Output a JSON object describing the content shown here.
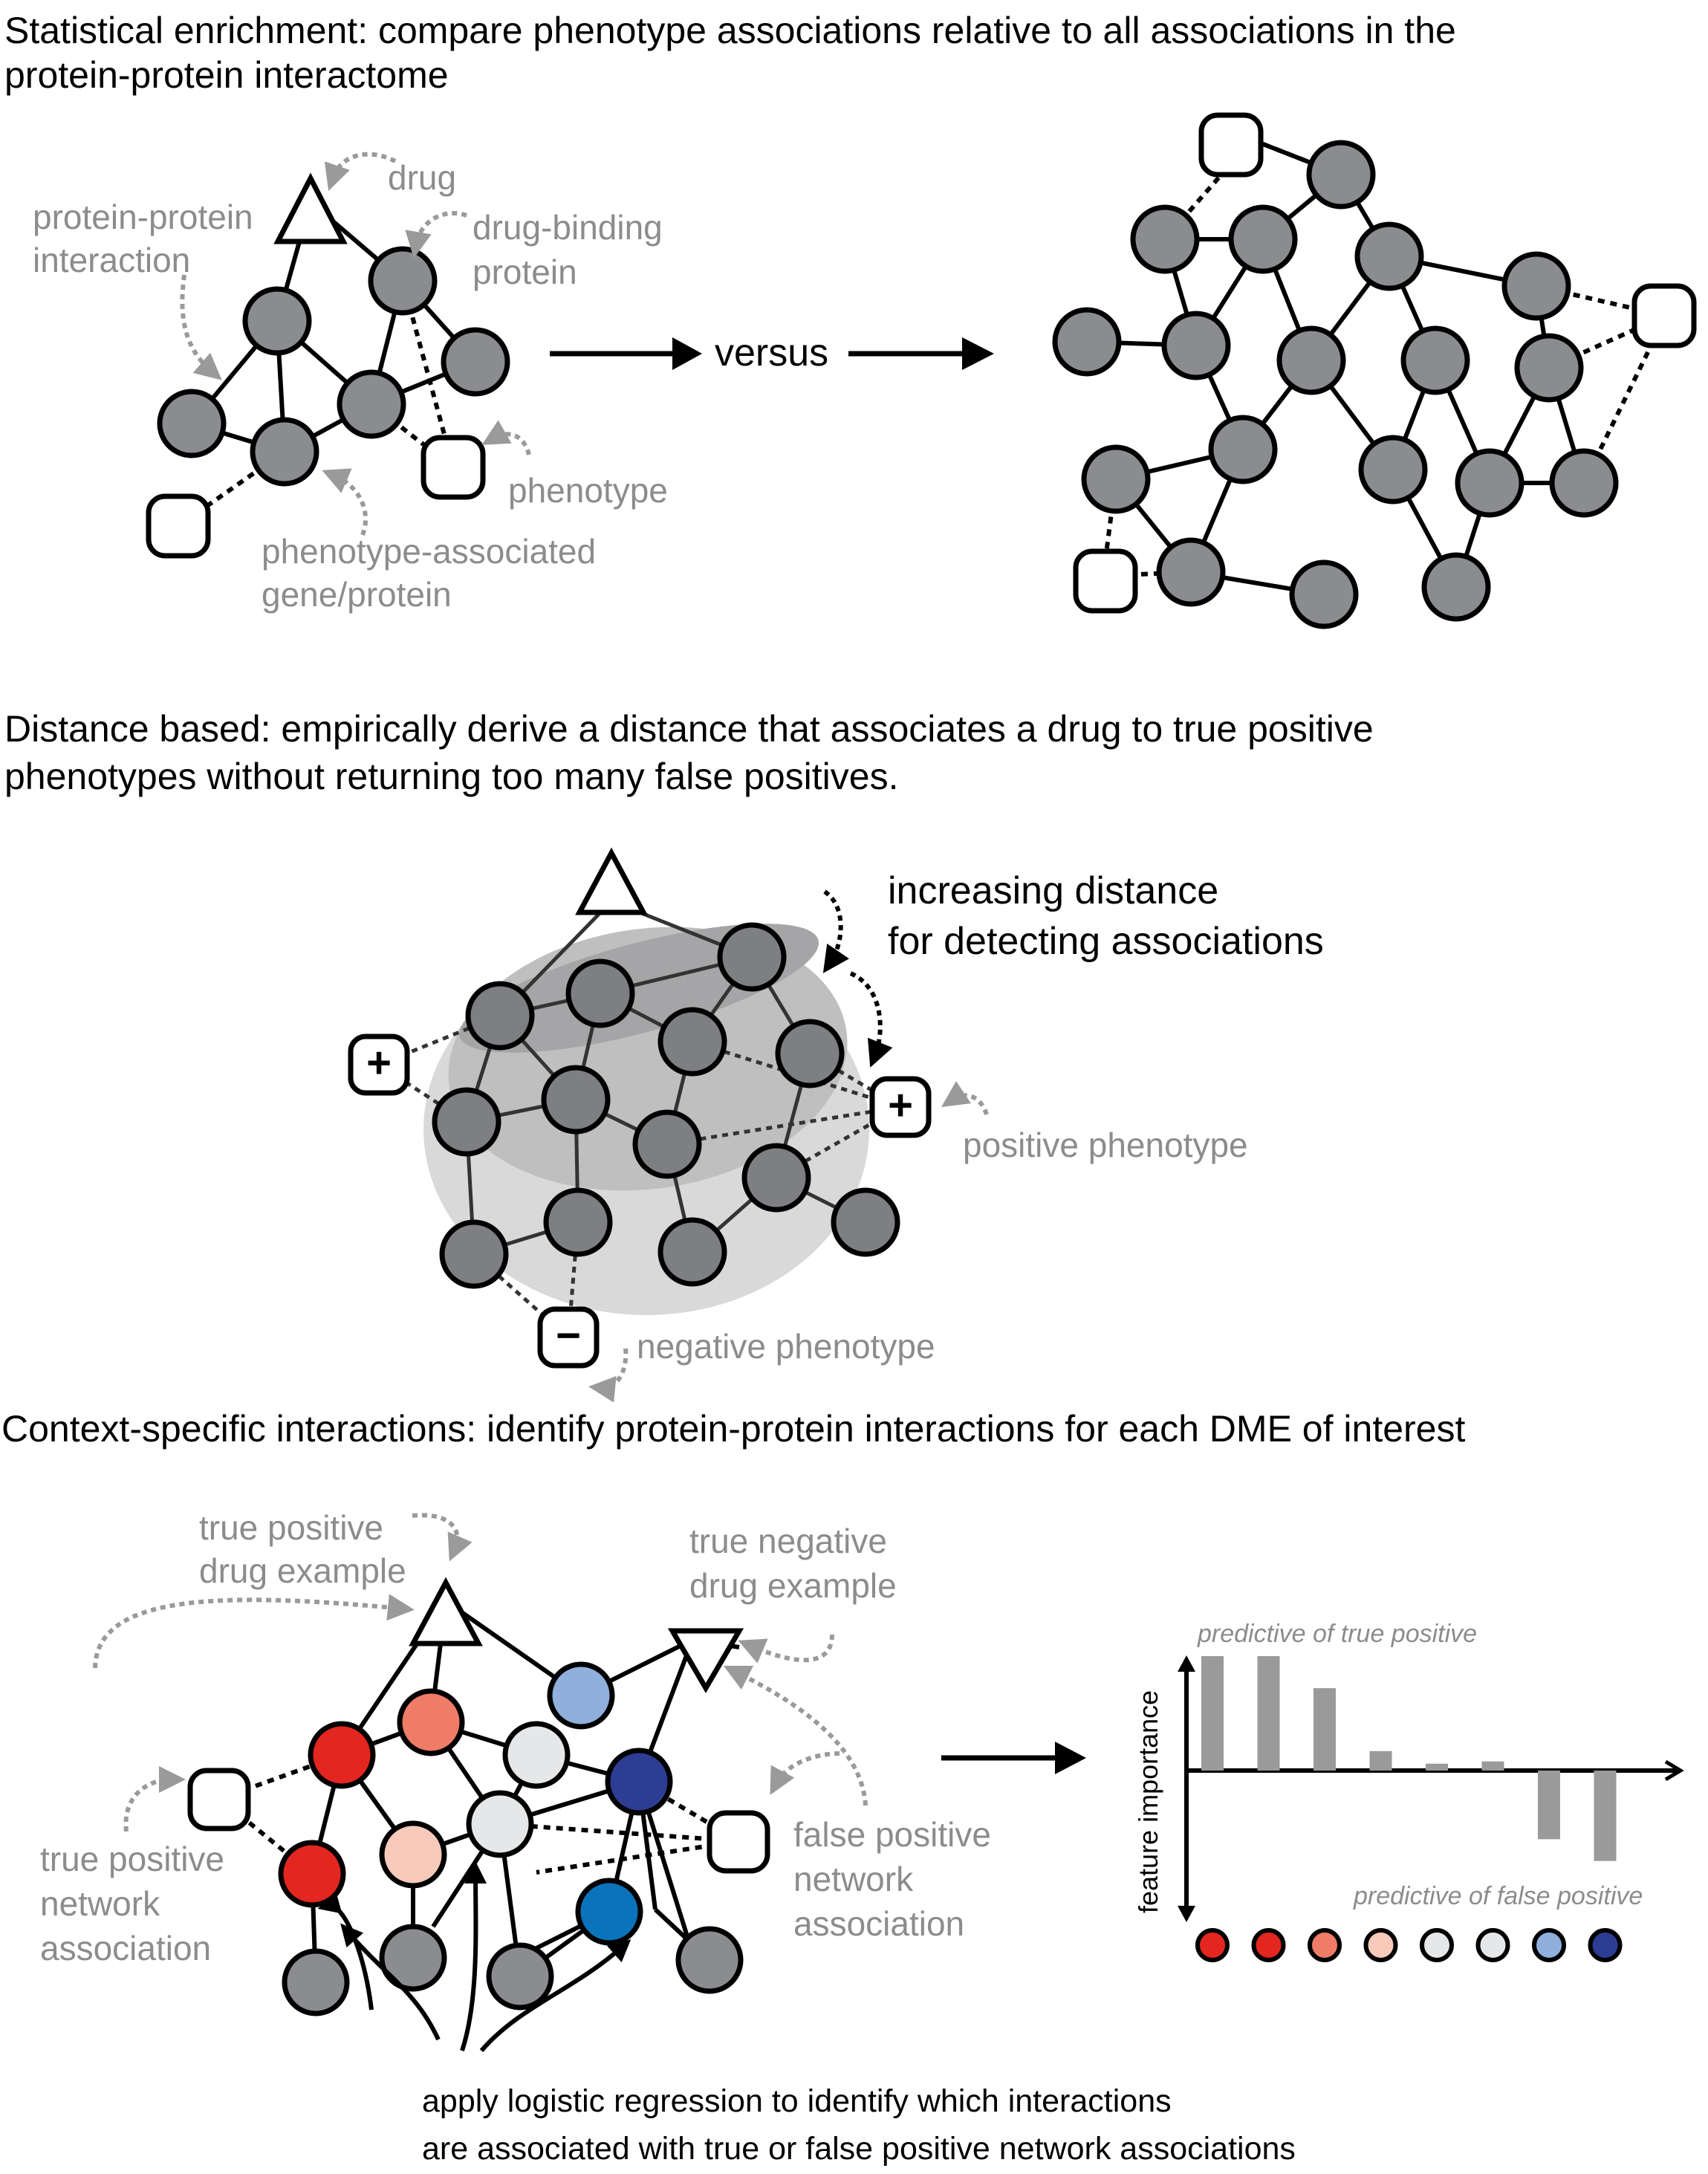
{
  "colors": {
    "node_gray": "#8b8c8f",
    "node_gray_dim": "#7e7f82",
    "label_gray": "#8c8c8c",
    "red": "#e3261f",
    "red_light": "#ef7c66",
    "pink": "#f7cabb",
    "light_gray": "#e6e7e8",
    "light_blue": "#8fb0dd",
    "dark_blue": "#2e3d94",
    "mid_blue": "#0a73bb",
    "bar_gray": "#9a9a9a"
  },
  "section1": {
    "title_line1": "Statistical enrichment: compare phenotype associations relative to all associations in the",
    "title_line2": "protein-protein interactome",
    "labels": {
      "drug": "drug",
      "ppi_line1": "protein-protein",
      "ppi_line2": "interaction",
      "dbp_line1": "drug-binding",
      "dbp_line2": "protein",
      "phenotype": "phenotype",
      "pag_line1": "phenotype-associated",
      "pag_line2": "gene/protein"
    },
    "versus": "versus"
  },
  "section2": {
    "title_line1": "Distance based: empirically derive a distance that associates a drug to true positive",
    "title_line2": "phenotypes without returning too many false positives.",
    "increasing_line1": "increasing distance",
    "increasing_line2": "for detecting associations",
    "positive_phenotype": "positive phenotype",
    "negative_phenotype": "negative phenotype",
    "plus_symbol": "+",
    "minus_symbol": "−"
  },
  "section3": {
    "title": "Context-specific interactions: identify protein-protein interactions for each DME of interest",
    "tp_drug_line1": "true positive",
    "tp_drug_line2": "drug example",
    "tn_drug_line1": "true negative",
    "tn_drug_line2": "drug example",
    "tp_net_line1": "true positive",
    "tp_net_line2": "network",
    "tp_net_line3": "association",
    "fp_net_line1": "false positive",
    "fp_net_line2": "network",
    "fp_net_line3": "association",
    "bottom_line1": "apply logistic regression to identify which interactions",
    "bottom_line2": "are associated with true or false positive network associations",
    "chart": {
      "ylabel": "feature importance",
      "top_note": "predictive of true positive",
      "bottom_note": "predictive of false positive"
    }
  },
  "chart_data": {
    "type": "bar",
    "title": "",
    "xlabel": "",
    "ylabel": "feature importance",
    "values": [
      1.0,
      1.0,
      0.72,
      0.17,
      0.06,
      0.08,
      -0.6,
      -0.79
    ],
    "marker_colors": [
      "#e3261f",
      "#e3261f",
      "#ef7c66",
      "#f7cabb",
      "#e6e7e8",
      "#e6e7e8",
      "#8fb0dd",
      "#2e3d94"
    ],
    "ylim": [
      -1.3,
      1.3
    ],
    "annotations": [
      "predictive of true positive",
      "predictive of false positive"
    ]
  }
}
